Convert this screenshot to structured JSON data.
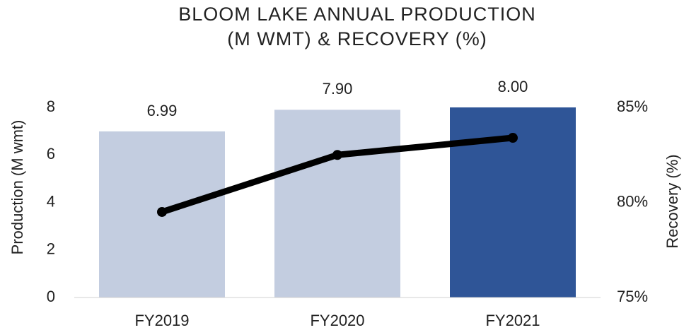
{
  "chart_data": {
    "type": "bar",
    "title": [
      "BLOOM LAKE ANNUAL PRODUCTION",
      "(M WMT) & RECOVERY (%)"
    ],
    "y_label": "Production (M wmt)",
    "y2_label": "Recovery (%)",
    "categories": [
      "FY2019",
      "FY2020",
      "FY2021"
    ],
    "series": [
      {
        "type": "bar",
        "values": [
          6.99,
          7.9,
          8.0
        ],
        "value_labels": [
          "6.99",
          "7.90",
          "8.00"
        ],
        "colors": [
          "#c3cde0",
          "#c3cde0",
          "#2f5597"
        ]
      },
      {
        "type": "line",
        "axis": "y2",
        "color": "#000000",
        "values": [
          79.5,
          82.5,
          83.4
        ]
      }
    ],
    "ylim": [
      0,
      8
    ],
    "yticks": [
      0,
      2,
      4,
      6,
      8
    ],
    "y2lim": [
      75,
      85
    ],
    "y2ticks": [
      {
        "value": 75,
        "label": "75%"
      },
      {
        "value": 80,
        "label": "80%"
      },
      {
        "value": 85,
        "label": "85%"
      }
    ],
    "grid": false
  }
}
